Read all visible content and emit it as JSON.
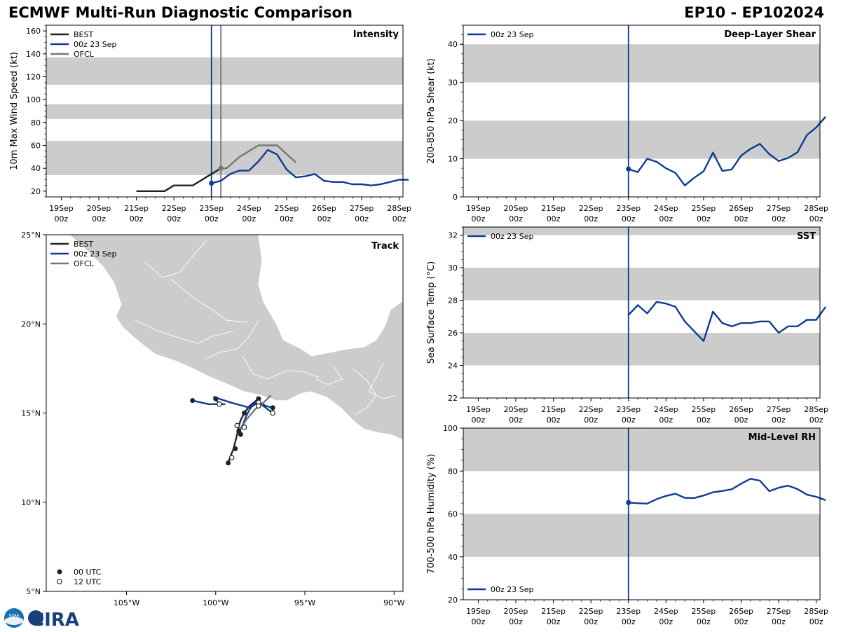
{
  "header": {
    "title": "ECMWF Multi-Run Diagnostic Comparison",
    "storm": "EP10 - EP102024"
  },
  "colors": {
    "best": "#222222",
    "run": "#0b3d91",
    "ofcl": "#777777",
    "band": "#cccccc",
    "land": "#cccccc"
  },
  "time_axis": {
    "day_labels": [
      "19Sep",
      "20Sep",
      "21Sep",
      "22Sep",
      "23Sep",
      "24Sep",
      "25Sep",
      "26Sep",
      "27Sep",
      "28Sep"
    ],
    "hour_label": "00z",
    "start_day": 18.6,
    "end_day": 28.1
  },
  "chart_data": [
    {
      "id": "intensity",
      "type": "line",
      "title": "Intensity",
      "ylabel": "10m Max Wind Speed (kt)",
      "ylim": [
        15,
        165
      ],
      "yticks": [
        20,
        40,
        60,
        80,
        100,
        120,
        140,
        160
      ],
      "bands": [
        [
          34,
          64
        ],
        [
          83,
          96
        ],
        [
          113,
          137
        ]
      ],
      "vlines": [
        {
          "day": 23.0,
          "series": "run"
        },
        {
          "day": 23.25,
          "series": "ofcl"
        }
      ],
      "legend": [
        "BEST",
        "00z 23 Sep",
        "OFCL"
      ],
      "series": [
        {
          "name": "BEST",
          "key": "best",
          "x": [
            21.0,
            21.25,
            21.5,
            21.75,
            22.0,
            22.25,
            22.5,
            22.75,
            23.0,
            23.25
          ],
          "y": [
            20,
            20,
            20,
            20,
            25,
            25,
            25,
            30,
            35,
            40
          ]
        },
        {
          "name": "00z 23 Sep",
          "key": "run",
          "x": [
            23.0,
            23.25,
            23.5,
            23.75,
            24.0,
            24.25,
            24.5,
            24.75,
            25.0,
            25.25,
            25.5,
            25.75,
            26.0,
            26.25,
            26.5,
            26.75,
            27.0,
            27.25,
            27.5,
            27.75,
            28.0,
            28.25
          ],
          "y": [
            27,
            29,
            35,
            38,
            38,
            46,
            56,
            52,
            39,
            32,
            33,
            35,
            29,
            28,
            28,
            26,
            26,
            25,
            26,
            28,
            30,
            30
          ]
        },
        {
          "name": "OFCL",
          "key": "ofcl",
          "x": [
            23.25,
            23.4,
            23.75,
            24.25,
            24.75,
            25.25
          ],
          "y": [
            40,
            40,
            50,
            60,
            60,
            45
          ]
        }
      ],
      "markers": [
        {
          "series": "run",
          "x": 23.0,
          "y": 27
        },
        {
          "series": "ofcl",
          "x": 23.25,
          "y": 40
        }
      ]
    },
    {
      "id": "shear",
      "type": "line",
      "title": "Deep-Layer Shear",
      "ylabel": "200-850 hPa Shear (kt)",
      "ylim": [
        0,
        45
      ],
      "yticks": [
        0,
        10,
        20,
        30,
        40
      ],
      "bands": [
        [
          10,
          20
        ],
        [
          30,
          40
        ]
      ],
      "vlines": [
        {
          "day": 23.0,
          "series": "run"
        }
      ],
      "legend": [
        "00z 23 Sep"
      ],
      "series": [
        {
          "name": "00z 23 Sep",
          "key": "run",
          "x": [
            23.0,
            23.25,
            23.5,
            23.75,
            24.0,
            24.25,
            24.5,
            24.75,
            25.0,
            25.25,
            25.5,
            25.75,
            26.0,
            26.25,
            26.5,
            26.75,
            27.0,
            27.25,
            27.5,
            27.75,
            28.0,
            28.25
          ],
          "y": [
            7.3,
            6.5,
            10.0,
            9.2,
            7.5,
            6.3,
            3.0,
            5.0,
            6.7,
            11.6,
            6.8,
            7.2,
            10.8,
            12.6,
            13.9,
            11.2,
            9.4,
            10.2,
            11.7,
            16.2,
            18.2,
            21.0
          ]
        }
      ],
      "markers": [
        {
          "series": "run",
          "x": 23.0,
          "y": 7.3
        }
      ]
    },
    {
      "id": "sst",
      "type": "line",
      "title": "SST",
      "ylabel": "Sea Surface Temp (°C)",
      "ylim": [
        22,
        32.5
      ],
      "yticks": [
        22,
        24,
        26,
        28,
        30,
        32
      ],
      "bands": [
        [
          24,
          26
        ],
        [
          28,
          30
        ],
        [
          32,
          32.5
        ]
      ],
      "vlines": [
        {
          "day": 23.0,
          "series": "run"
        }
      ],
      "legend": [
        "00z 23 Sep"
      ],
      "series": [
        {
          "name": "00z 23 Sep",
          "key": "run",
          "x": [
            23.0,
            23.25,
            23.5,
            23.75,
            24.0,
            24.25,
            24.5,
            24.75,
            25.0,
            25.25,
            25.5,
            25.75,
            26.0,
            26.25,
            26.5,
            26.75,
            27.0,
            27.25,
            27.5,
            27.75,
            28.0,
            28.25
          ],
          "y": [
            27.1,
            27.7,
            27.2,
            27.9,
            27.8,
            27.6,
            26.7,
            26.1,
            25.5,
            27.3,
            26.6,
            26.4,
            26.6,
            26.6,
            26.7,
            26.7,
            26.0,
            26.4,
            26.4,
            26.8,
            26.8,
            27.6
          ]
        }
      ],
      "markers": []
    },
    {
      "id": "rh",
      "type": "line",
      "title": "Mid-Level RH",
      "ylabel": "700-500 hPa Humidity (%)",
      "ylim": [
        20,
        100
      ],
      "yticks": [
        20,
        40,
        60,
        80,
        100
      ],
      "bands": [
        [
          40,
          60
        ],
        [
          80,
          100
        ]
      ],
      "vlines": [
        {
          "day": 23.0,
          "series": "run"
        }
      ],
      "legend": [
        "00z 23 Sep"
      ],
      "series": [
        {
          "name": "00z 23 Sep",
          "key": "run",
          "x": [
            23.0,
            23.25,
            23.5,
            23.75,
            24.0,
            24.25,
            24.5,
            24.75,
            25.0,
            25.25,
            25.5,
            25.75,
            26.0,
            26.25,
            26.5,
            26.75,
            27.0,
            27.25,
            27.5,
            27.75,
            28.0,
            28.25
          ],
          "y": [
            65.3,
            65.0,
            64.8,
            66.9,
            68.4,
            69.4,
            67.5,
            67.4,
            68.6,
            70.1,
            70.7,
            71.5,
            74.1,
            76.4,
            75.5,
            70.6,
            72.2,
            73.2,
            71.6,
            69.0,
            68.0,
            66.4
          ]
        }
      ],
      "markers": [
        {
          "series": "run",
          "x": 23.0,
          "y": 65.3
        }
      ]
    },
    {
      "id": "track",
      "type": "scatter",
      "title": "Track",
      "xlabel": "",
      "ylabel": "",
      "lon_range": [
        -109.5,
        -89.5
      ],
      "lat_range": [
        5,
        25
      ],
      "xtick_values": [
        -105,
        -100,
        -95,
        -90
      ],
      "xtick_labels": [
        "105°W",
        "100°W",
        "95°W",
        "90°W"
      ],
      "ytick_values": [
        5,
        10,
        15,
        20,
        25
      ],
      "ytick_labels": [
        "5°N",
        "10°N",
        "15°N",
        "20°N",
        "25°N"
      ],
      "legend": [
        "BEST",
        "00z 23 Sep",
        "OFCL"
      ],
      "point_legend": [
        "00 UTC",
        "12 UTC"
      ],
      "series": [
        {
          "name": "BEST",
          "key": "best",
          "lon": [
            -99.3,
            -99.2,
            -99.0,
            -98.9,
            -98.8,
            -98.7,
            -98.6,
            -98.4,
            -98.1,
            -97.6
          ],
          "lat": [
            12.2,
            12.5,
            13.0,
            13.4,
            13.8,
            14.3,
            14.6,
            15.0,
            15.4,
            15.8
          ]
        },
        {
          "name": "00z 23 Sep",
          "key": "run",
          "lon": [
            -98.7,
            -98.5,
            -98.3,
            -98.1,
            -97.7,
            -97.2,
            -96.8,
            -96.8,
            -97.6,
            -98.1,
            -99.2,
            -100.1,
            -100.0,
            -99.8,
            -99.5,
            -100.4,
            -101.3
          ],
          "lat": [
            14.0,
            14.3,
            14.8,
            15.2,
            15.7,
            15.4,
            15.3,
            15.0,
            15.6,
            15.3,
            15.6,
            15.9,
            15.8,
            15.5,
            15.5,
            15.5,
            15.7
          ]
        },
        {
          "name": "OFCL",
          "key": "ofcl",
          "lon": [
            -98.6,
            -98.3,
            -97.8,
            -97.3,
            -96.9
          ],
          "lat": [
            14.1,
            14.6,
            15.2,
            15.6,
            16.0
          ]
        }
      ],
      "points_00utc": [
        [
          -99.3,
          12.2
        ],
        [
          -98.9,
          13.0
        ],
        [
          -98.6,
          13.8
        ],
        [
          -98.4,
          15.0
        ],
        [
          -97.6,
          15.8
        ],
        [
          -98.7,
          14.0
        ],
        [
          -96.8,
          15.3
        ],
        [
          -100.0,
          15.8
        ],
        [
          -101.3,
          15.7
        ]
      ],
      "points_12utc": [
        [
          -99.1,
          12.5
        ],
        [
          -98.8,
          14.3
        ],
        [
          -98.4,
          14.2
        ],
        [
          -97.6,
          15.6
        ],
        [
          -96.8,
          15.0
        ],
        [
          -97.6,
          15.4
        ],
        [
          -99.8,
          15.5
        ]
      ]
    }
  ],
  "logo": {
    "agency": "NOAA",
    "name": "CIRA"
  }
}
